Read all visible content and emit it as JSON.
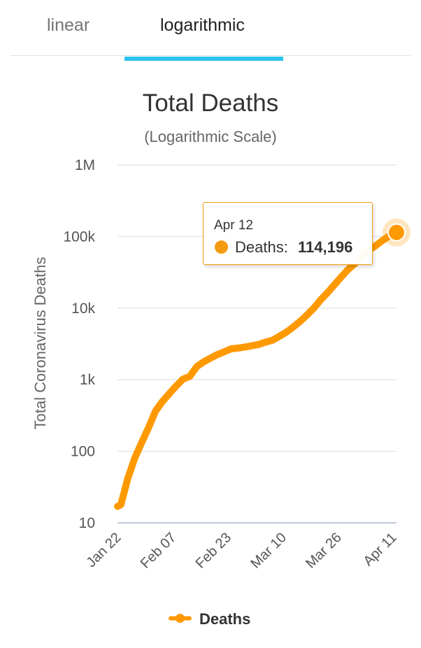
{
  "tabs": [
    {
      "label": "linear",
      "selected": false
    },
    {
      "label": "logarithmic",
      "selected": true
    }
  ],
  "colors": {
    "accent": "#2ec4ef",
    "series": "#ff9900",
    "tooltip_border": "#f39c12"
  },
  "tooltip": {
    "date": "Apr 12",
    "series_label": "Deaths: ",
    "value": "114,196"
  },
  "chart_data": {
    "type": "line",
    "title": "Total Deaths",
    "subtitle": "(Logarithmic Scale)",
    "xlabel": "",
    "ylabel": "Total Coronavirus Deaths",
    "y_scale": "log",
    "ylim": [
      10,
      1000000
    ],
    "y_tick_values": [
      10,
      100,
      1000,
      10000,
      100000,
      1000000
    ],
    "y_tick_labels": [
      "10",
      "100",
      "1k",
      "10k",
      "100k",
      "1M"
    ],
    "x_tick_labels": [
      "Jan 22",
      "Feb 07",
      "Feb 23",
      "Mar 10",
      "Mar 26",
      "Apr 11"
    ],
    "x_range": [
      "Jan 22",
      "Apr 12"
    ],
    "grid": true,
    "legend_position": "bottom-center",
    "series": [
      {
        "name": "Deaths",
        "x": [
          "Jan 22",
          "Jan 23",
          "Jan 25",
          "Jan 27",
          "Jan 29",
          "Jan 31",
          "Feb 02",
          "Feb 04",
          "Feb 06",
          "Feb 08",
          "Feb 10",
          "Feb 12",
          "Feb 14",
          "Feb 16",
          "Feb 18",
          "Feb 20",
          "Feb 22",
          "Feb 24",
          "Feb 26",
          "Feb 28",
          "Mar 01",
          "Mar 03",
          "Mar 05",
          "Mar 07",
          "Mar 09",
          "Mar 11",
          "Mar 13",
          "Mar 15",
          "Mar 17",
          "Mar 19",
          "Mar 21",
          "Mar 23",
          "Mar 25",
          "Mar 27",
          "Mar 29",
          "Mar 31",
          "Apr 02",
          "Apr 04",
          "Apr 06",
          "Apr 08",
          "Apr 10",
          "Apr 12"
        ],
        "values": [
          17,
          18,
          42,
          80,
          132,
          213,
          362,
          492,
          637,
          813,
          1018,
          1115,
          1523,
          1771,
          2005,
          2249,
          2460,
          2704,
          2770,
          2867,
          2977,
          3110,
          3350,
          3560,
          4030,
          4617,
          5440,
          6520,
          8010,
          10030,
          13071,
          16500,
          21300,
          27400,
          34800,
          42300,
          53200,
          64700,
          74800,
          88500,
          102700,
          114196
        ]
      }
    ]
  }
}
